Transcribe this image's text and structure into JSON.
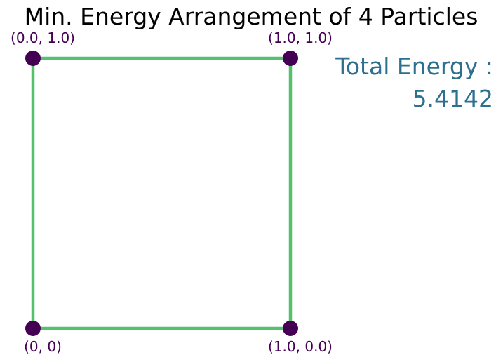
{
  "chart_data": {
    "type": "scatter",
    "title": "Min. Energy Arrangement of 4 Particles",
    "xlim": [
      0,
      1
    ],
    "ylim": [
      0,
      1
    ],
    "points": [
      {
        "x": 0.0,
        "y": 1.0,
        "label": "(0.0, 1.0)"
      },
      {
        "x": 1.0,
        "y": 1.0,
        "label": "(1.0, 1.0)"
      },
      {
        "x": 0.0,
        "y": 0.0,
        "label": "(0, 0)"
      },
      {
        "x": 1.0,
        "y": 0.0,
        "label": "(1.0, 0.0)"
      }
    ],
    "edges": [
      [
        2,
        3
      ],
      [
        3,
        1
      ],
      [
        1,
        0
      ],
      [
        0,
        2
      ]
    ],
    "annotation_label": "Total Energy :",
    "annotation_value": "5.4142",
    "colors": {
      "point": "#440154",
      "edge": "#55c16e",
      "label": "#440154",
      "annotation": "#2c6f8e",
      "title": "#000000"
    }
  }
}
